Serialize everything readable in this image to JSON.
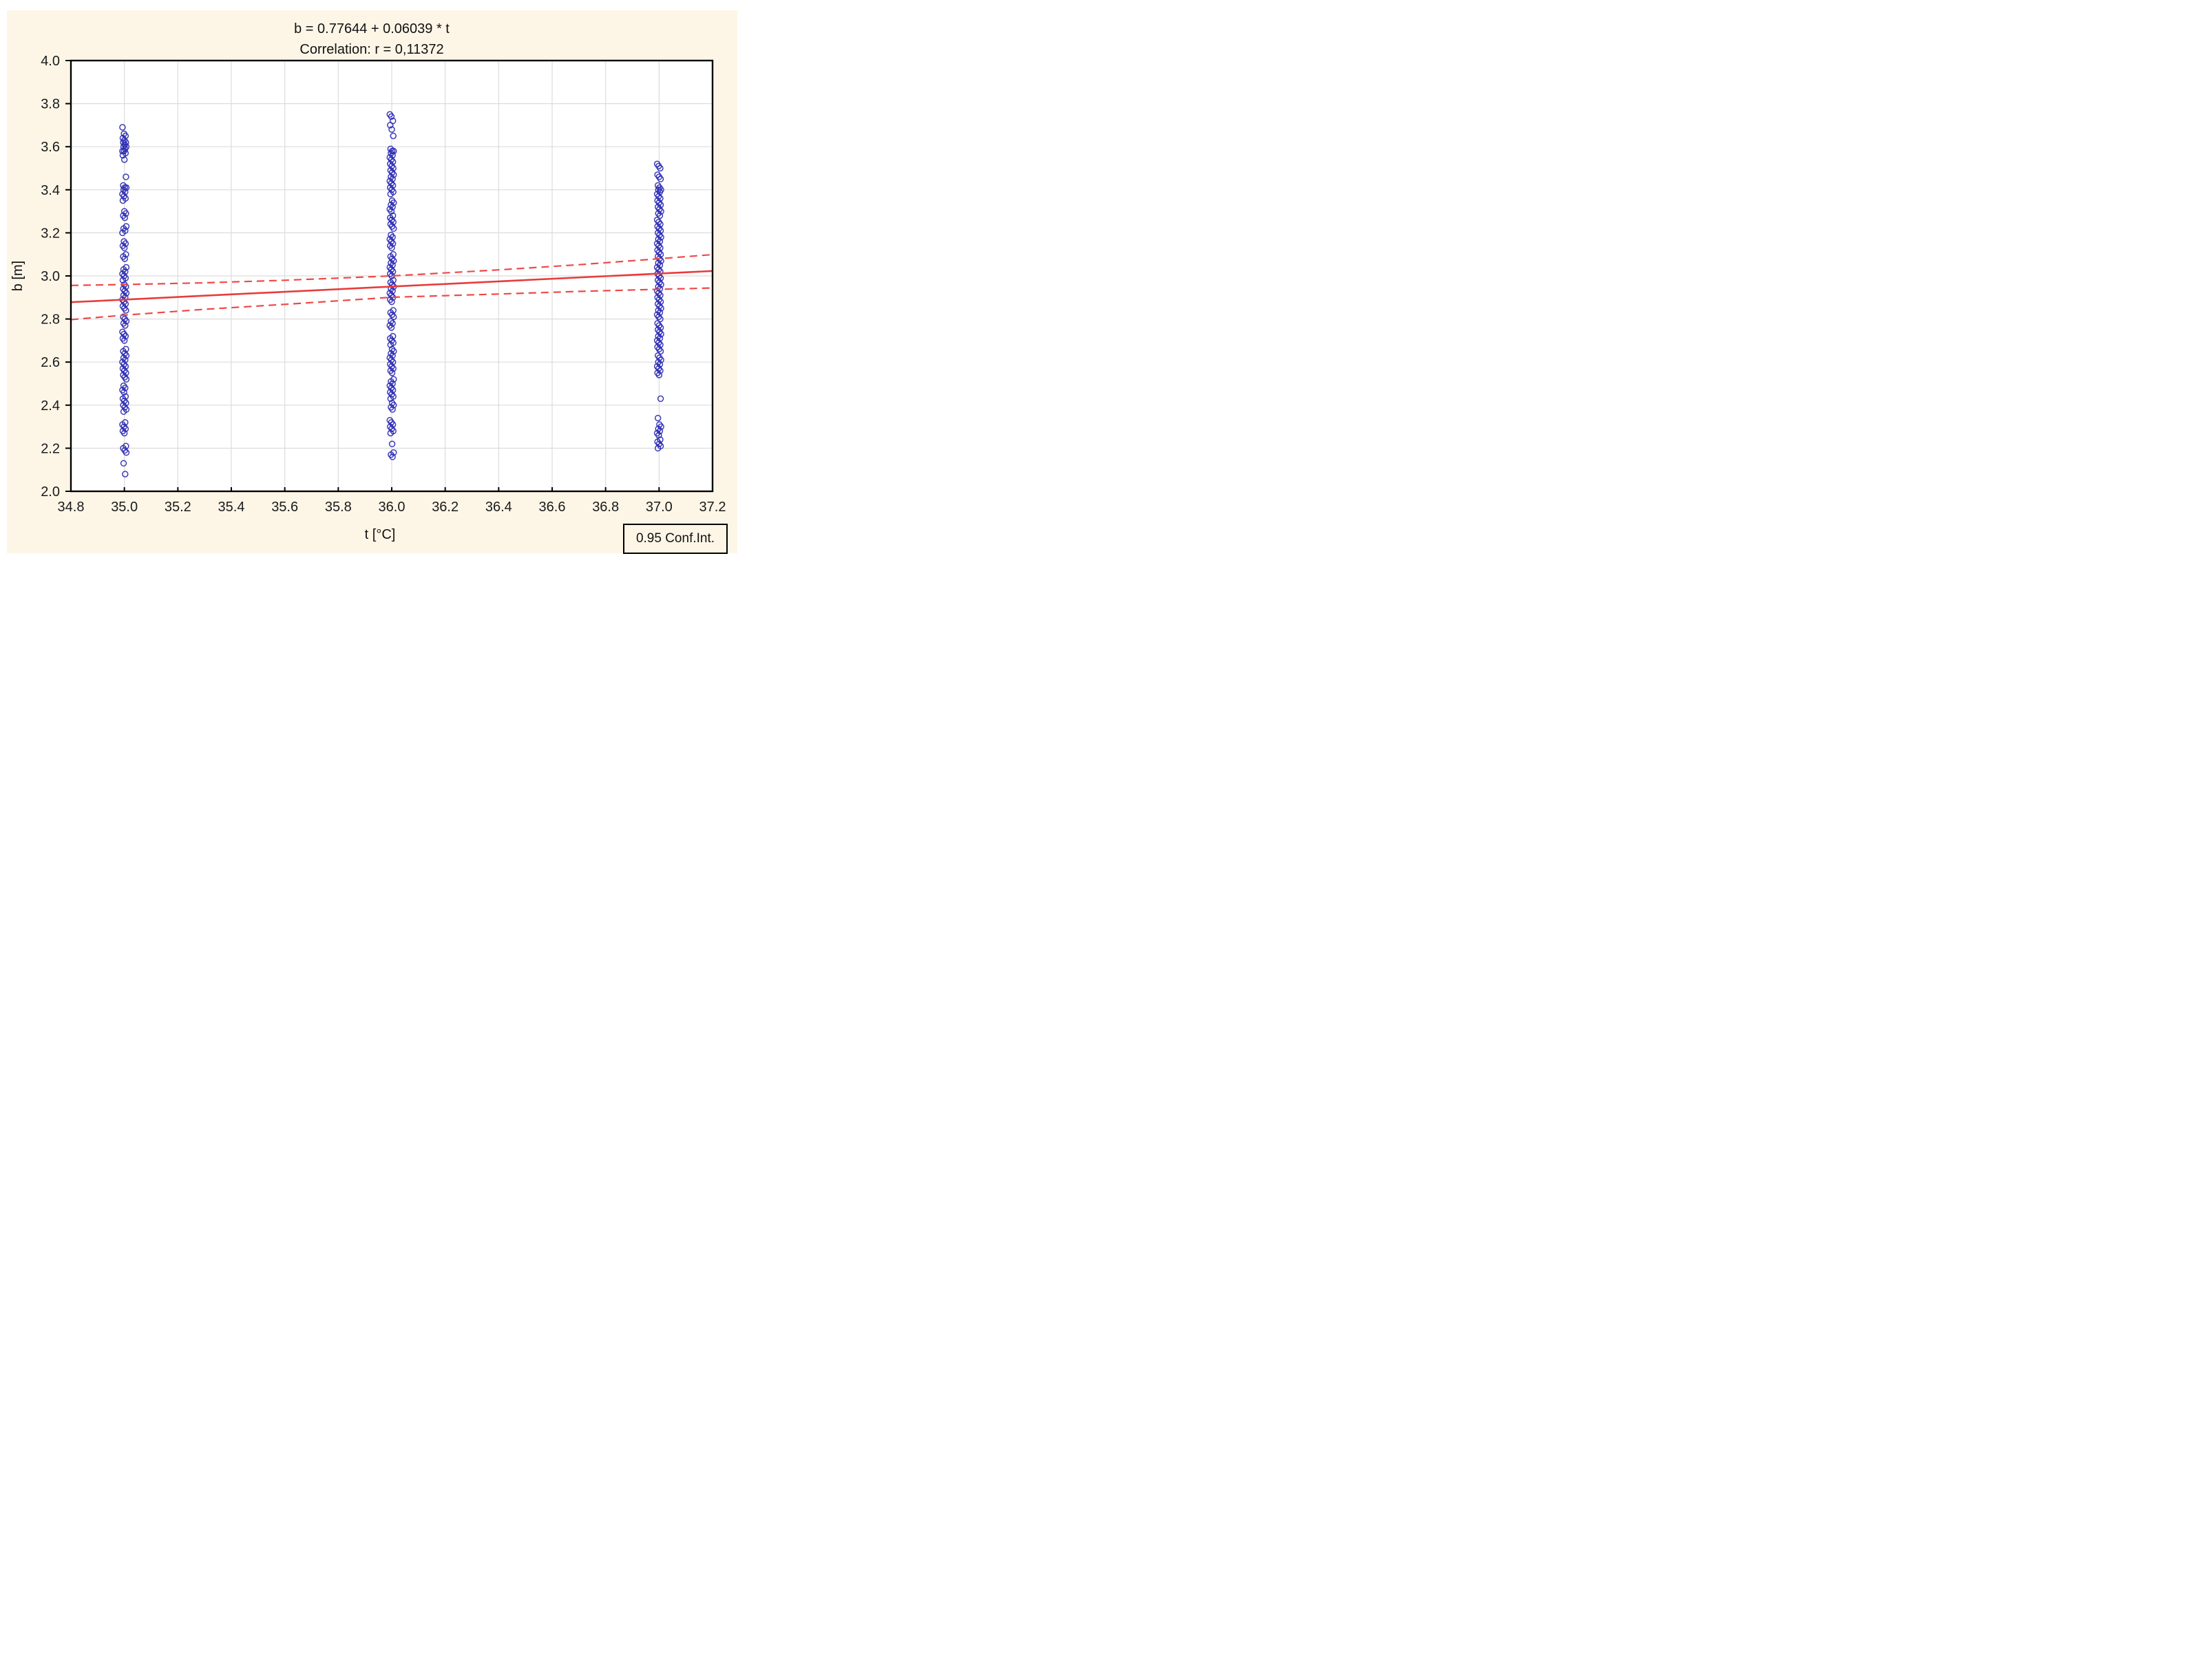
{
  "page": {
    "background": "#FFFFFF",
    "canvas_background": "#FDF6E7"
  },
  "chart_data": {
    "type": "scatter",
    "title_line1": "b = 0.77644 + 0.06039 * t",
    "title_line2": "Correlation: r = 0,11372",
    "xlabel": "t [°C]",
    "ylabel": "b [m]",
    "xlim": [
      34.8,
      37.2
    ],
    "ylim": [
      2.0,
      4.0
    ],
    "x_ticks": [
      34.8,
      35.0,
      35.2,
      35.4,
      35.6,
      35.8,
      36.0,
      36.2,
      36.4,
      36.6,
      36.8,
      37.0,
      37.2
    ],
    "y_ticks": [
      2.0,
      2.2,
      2.4,
      2.6,
      2.8,
      3.0,
      3.2,
      3.4,
      3.6,
      3.8,
      4.0
    ],
    "grid": true,
    "marker": "open-circle",
    "colors": {
      "background": "#FDF6E7",
      "plot_background": "#FFFFFF",
      "grid": "#DCDCDC",
      "frame": "#000000",
      "marker": "#2B2BB4",
      "regression_line": "#E83C3C",
      "confidence_line": "#EF4848",
      "text": "#1A1A1A"
    },
    "regression": {
      "intercept": 0.77644,
      "slope": 0.06039,
      "r": 0.11372
    },
    "confidence_interval": {
      "level": 0.95,
      "t": [
        34.8,
        35.0,
        35.3,
        35.6,
        36.0,
        36.4,
        36.7,
        37.0,
        37.2
      ],
      "upper": [
        2.956,
        2.96,
        2.968,
        2.98,
        3.0,
        3.028,
        3.052,
        3.08,
        3.099
      ],
      "lower": [
        2.797,
        2.818,
        2.845,
        2.868,
        2.901,
        2.916,
        2.928,
        2.938,
        2.944
      ]
    },
    "series": [
      {
        "name": "t = 35.0",
        "t": 35.0,
        "b_values": [
          3.69,
          3.66,
          3.65,
          3.64,
          3.63,
          3.62,
          3.62,
          3.61,
          3.6,
          3.6,
          3.59,
          3.58,
          3.58,
          3.57,
          3.56,
          3.54,
          3.46,
          3.42,
          3.41,
          3.41,
          3.4,
          3.39,
          3.38,
          3.37,
          3.36,
          3.35,
          3.3,
          3.29,
          3.28,
          3.27,
          3.23,
          3.22,
          3.21,
          3.2,
          3.16,
          3.15,
          3.14,
          3.13,
          3.1,
          3.09,
          3.08,
          3.04,
          3.03,
          3.02,
          3.01,
          3.0,
          2.99,
          2.98,
          2.96,
          2.95,
          2.94,
          2.93,
          2.92,
          2.91,
          2.9,
          2.89,
          2.88,
          2.87,
          2.86,
          2.85,
          2.84,
          2.81,
          2.8,
          2.79,
          2.78,
          2.77,
          2.74,
          2.73,
          2.72,
          2.71,
          2.7,
          2.66,
          2.65,
          2.64,
          2.63,
          2.62,
          2.61,
          2.6,
          2.59,
          2.58,
          2.57,
          2.56,
          2.55,
          2.54,
          2.53,
          2.52,
          2.49,
          2.48,
          2.47,
          2.46,
          2.44,
          2.43,
          2.42,
          2.41,
          2.4,
          2.39,
          2.38,
          2.37,
          2.32,
          2.31,
          2.3,
          2.29,
          2.28,
          2.27,
          2.21,
          2.2,
          2.19,
          2.18,
          2.13,
          2.08
        ]
      },
      {
        "name": "t = 36.0",
        "t": 36.0,
        "b_values": [
          3.75,
          3.74,
          3.72,
          3.7,
          3.68,
          3.65,
          3.59,
          3.58,
          3.58,
          3.57,
          3.56,
          3.55,
          3.54,
          3.53,
          3.52,
          3.51,
          3.5,
          3.49,
          3.48,
          3.47,
          3.46,
          3.45,
          3.44,
          3.43,
          3.42,
          3.41,
          3.4,
          3.39,
          3.38,
          3.35,
          3.34,
          3.33,
          3.32,
          3.31,
          3.3,
          3.28,
          3.27,
          3.26,
          3.25,
          3.24,
          3.23,
          3.22,
          3.19,
          3.18,
          3.17,
          3.16,
          3.15,
          3.14,
          3.13,
          3.1,
          3.09,
          3.08,
          3.07,
          3.06,
          3.05,
          3.04,
          3.03,
          3.02,
          3.01,
          3.0,
          2.98,
          2.97,
          2.96,
          2.95,
          2.94,
          2.93,
          2.92,
          2.91,
          2.9,
          2.89,
          2.88,
          2.84,
          2.83,
          2.82,
          2.81,
          2.79,
          2.78,
          2.77,
          2.76,
          2.72,
          2.71,
          2.7,
          2.69,
          2.68,
          2.66,
          2.65,
          2.64,
          2.63,
          2.62,
          2.61,
          2.6,
          2.59,
          2.58,
          2.57,
          2.56,
          2.55,
          2.52,
          2.51,
          2.5,
          2.49,
          2.48,
          2.47,
          2.46,
          2.45,
          2.44,
          2.43,
          2.41,
          2.4,
          2.39,
          2.38,
          2.33,
          2.32,
          2.31,
          2.3,
          2.29,
          2.28,
          2.27,
          2.22,
          2.18,
          2.17,
          2.16
        ]
      },
      {
        "name": "t = 37.0",
        "t": 37.0,
        "b_values": [
          3.52,
          3.51,
          3.5,
          3.47,
          3.46,
          3.45,
          3.42,
          3.41,
          3.4,
          3.4,
          3.39,
          3.38,
          3.37,
          3.36,
          3.35,
          3.34,
          3.33,
          3.32,
          3.31,
          3.3,
          3.29,
          3.28,
          3.26,
          3.25,
          3.24,
          3.23,
          3.22,
          3.21,
          3.2,
          3.19,
          3.18,
          3.17,
          3.16,
          3.15,
          3.14,
          3.13,
          3.12,
          3.11,
          3.1,
          3.09,
          3.08,
          3.07,
          3.06,
          3.05,
          3.04,
          3.03,
          3.02,
          3.01,
          3.0,
          2.99,
          2.98,
          2.97,
          2.96,
          2.95,
          2.94,
          2.93,
          2.92,
          2.91,
          2.9,
          2.89,
          2.88,
          2.87,
          2.86,
          2.85,
          2.84,
          2.83,
          2.82,
          2.81,
          2.8,
          2.78,
          2.77,
          2.76,
          2.75,
          2.74,
          2.73,
          2.72,
          2.71,
          2.7,
          2.69,
          2.68,
          2.67,
          2.66,
          2.65,
          2.63,
          2.62,
          2.61,
          2.6,
          2.59,
          2.58,
          2.57,
          2.56,
          2.55,
          2.54,
          2.43,
          2.34,
          2.31,
          2.3,
          2.29,
          2.28,
          2.27,
          2.26,
          2.24,
          2.23,
          2.22,
          2.21,
          2.2
        ]
      }
    ],
    "legend": {
      "label": "0.95 Conf.Int.",
      "position": "bottom-right"
    }
  }
}
